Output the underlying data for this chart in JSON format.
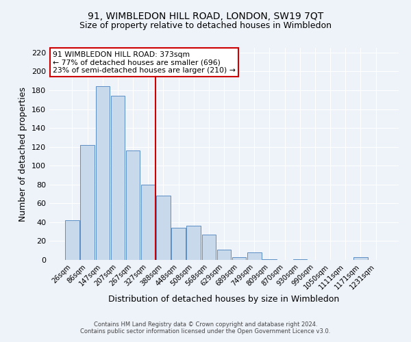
{
  "title": "91, WIMBLEDON HILL ROAD, LONDON, SW19 7QT",
  "subtitle": "Size of property relative to detached houses in Wimbledon",
  "xlabel": "Distribution of detached houses by size in Wimbledon",
  "ylabel": "Number of detached properties",
  "footer_line1": "Contains HM Land Registry data © Crown copyright and database right 2024.",
  "footer_line2": "Contains public sector information licensed under the Open Government Licence v3.0.",
  "bar_labels": [
    "26sqm",
    "86sqm",
    "147sqm",
    "207sqm",
    "267sqm",
    "327sqm",
    "388sqm",
    "448sqm",
    "508sqm",
    "568sqm",
    "629sqm",
    "689sqm",
    "749sqm",
    "809sqm",
    "870sqm",
    "930sqm",
    "990sqm",
    "1050sqm",
    "1111sqm",
    "1171sqm",
    "1231sqm"
  ],
  "bar_values": [
    42,
    122,
    184,
    174,
    116,
    80,
    68,
    34,
    36,
    27,
    11,
    3,
    8,
    1,
    0,
    1,
    0,
    0,
    0,
    3,
    0
  ],
  "bar_color": "#c8d9eb",
  "bar_edge_color": "#5b8ec4",
  "vline_x": 6.0,
  "vline_color": "#cc0000",
  "annotation_title": "91 WIMBLEDON HILL ROAD: 373sqm",
  "annotation_line2": "← 77% of detached houses are smaller (696)",
  "annotation_line3": "23% of semi-detached houses are larger (210) →",
  "annotation_box_color": "#ffffff",
  "annotation_box_edgecolor": "#cc0000",
  "ylim": [
    0,
    225
  ],
  "yticks": [
    0,
    20,
    40,
    60,
    80,
    100,
    120,
    140,
    160,
    180,
    200,
    220
  ],
  "background_color": "#eef2f9",
  "grid_color": "#ffffff",
  "title_fontsize": 10,
  "subtitle_fontsize": 9
}
